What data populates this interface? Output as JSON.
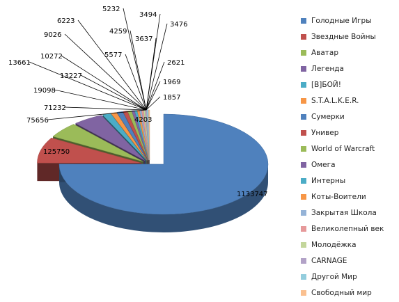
{
  "chart_data": {
    "type": "pie",
    "style": "3d-exploded",
    "legend_position": "right",
    "series": [
      {
        "name": "Голодные Игры",
        "value": 1133747,
        "color": "#4f81bd"
      },
      {
        "name": "Звездные Войны",
        "value": 125750,
        "color": "#c0504d"
      },
      {
        "name": "Аватар",
        "value": 75656,
        "color": "#9bbb59"
      },
      {
        "name": "Легенда",
        "value": 71232,
        "color": "#8064a2"
      },
      {
        "name": "[В]БОЙ!",
        "value": 19098,
        "color": "#4bacc6"
      },
      {
        "name": "S.T.A.L.K.E.R.",
        "value": 13227,
        "color": "#f79646"
      },
      {
        "name": "Сумерки",
        "value": 13661,
        "color": "#4f81bd"
      },
      {
        "name": "Универ",
        "value": 10272,
        "color": "#c0504d"
      },
      {
        "name": "World of Warcraft",
        "value": 9026,
        "color": "#9bbb59"
      },
      {
        "name": "Омега",
        "value": 6223,
        "color": "#8064a2"
      },
      {
        "name": "Интерны",
        "value": 5577,
        "color": "#4bacc6"
      },
      {
        "name": "Коты-Воители",
        "value": 5232,
        "color": "#f79646"
      },
      {
        "name": "Закрытая Школа",
        "value": 4259,
        "color": "#95b3d7"
      },
      {
        "name": "Великолепный век",
        "value": 4203,
        "color": "#e6999a"
      },
      {
        "name": "Молодёжка",
        "value": 3637,
        "color": "#c3d69b"
      },
      {
        "name": "CARNAGE",
        "value": 3494,
        "color": "#b2a2c7"
      },
      {
        "name": "Другой Мир",
        "value": 3476,
        "color": "#93cddd"
      },
      {
        "name": "Свободный мир",
        "value": 2621,
        "color": "#fac090"
      }
    ],
    "unlisted_labels": [
      {
        "value": "1969"
      },
      {
        "value": "1857"
      }
    ]
  }
}
